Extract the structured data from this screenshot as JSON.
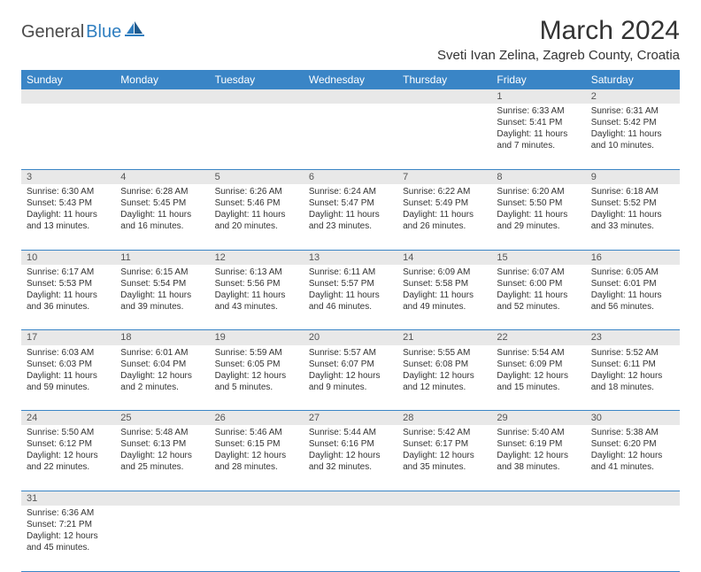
{
  "logo": {
    "text1": "General",
    "text2": "Blue"
  },
  "title": "March 2024",
  "location": "Sveti Ivan Zelina, Zagreb County, Croatia",
  "colors": {
    "header_bg": "#3a85c6",
    "header_text": "#ffffff",
    "daynum_bg": "#e8e8e8",
    "border": "#3a85c6",
    "logo_blue": "#2f7ec0"
  },
  "weekdays": [
    "Sunday",
    "Monday",
    "Tuesday",
    "Wednesday",
    "Thursday",
    "Friday",
    "Saturday"
  ],
  "weeks": [
    [
      null,
      null,
      null,
      null,
      null,
      {
        "n": "1",
        "sunrise": "6:33 AM",
        "sunset": "5:41 PM",
        "day": "11 hours and 7 minutes."
      },
      {
        "n": "2",
        "sunrise": "6:31 AM",
        "sunset": "5:42 PM",
        "day": "11 hours and 10 minutes."
      }
    ],
    [
      {
        "n": "3",
        "sunrise": "6:30 AM",
        "sunset": "5:43 PM",
        "day": "11 hours and 13 minutes."
      },
      {
        "n": "4",
        "sunrise": "6:28 AM",
        "sunset": "5:45 PM",
        "day": "11 hours and 16 minutes."
      },
      {
        "n": "5",
        "sunrise": "6:26 AM",
        "sunset": "5:46 PM",
        "day": "11 hours and 20 minutes."
      },
      {
        "n": "6",
        "sunrise": "6:24 AM",
        "sunset": "5:47 PM",
        "day": "11 hours and 23 minutes."
      },
      {
        "n": "7",
        "sunrise": "6:22 AM",
        "sunset": "5:49 PM",
        "day": "11 hours and 26 minutes."
      },
      {
        "n": "8",
        "sunrise": "6:20 AM",
        "sunset": "5:50 PM",
        "day": "11 hours and 29 minutes."
      },
      {
        "n": "9",
        "sunrise": "6:18 AM",
        "sunset": "5:52 PM",
        "day": "11 hours and 33 minutes."
      }
    ],
    [
      {
        "n": "10",
        "sunrise": "6:17 AM",
        "sunset": "5:53 PM",
        "day": "11 hours and 36 minutes."
      },
      {
        "n": "11",
        "sunrise": "6:15 AM",
        "sunset": "5:54 PM",
        "day": "11 hours and 39 minutes."
      },
      {
        "n": "12",
        "sunrise": "6:13 AM",
        "sunset": "5:56 PM",
        "day": "11 hours and 43 minutes."
      },
      {
        "n": "13",
        "sunrise": "6:11 AM",
        "sunset": "5:57 PM",
        "day": "11 hours and 46 minutes."
      },
      {
        "n": "14",
        "sunrise": "6:09 AM",
        "sunset": "5:58 PM",
        "day": "11 hours and 49 minutes."
      },
      {
        "n": "15",
        "sunrise": "6:07 AM",
        "sunset": "6:00 PM",
        "day": "11 hours and 52 minutes."
      },
      {
        "n": "16",
        "sunrise": "6:05 AM",
        "sunset": "6:01 PM",
        "day": "11 hours and 56 minutes."
      }
    ],
    [
      {
        "n": "17",
        "sunrise": "6:03 AM",
        "sunset": "6:03 PM",
        "day": "11 hours and 59 minutes."
      },
      {
        "n": "18",
        "sunrise": "6:01 AM",
        "sunset": "6:04 PM",
        "day": "12 hours and 2 minutes."
      },
      {
        "n": "19",
        "sunrise": "5:59 AM",
        "sunset": "6:05 PM",
        "day": "12 hours and 5 minutes."
      },
      {
        "n": "20",
        "sunrise": "5:57 AM",
        "sunset": "6:07 PM",
        "day": "12 hours and 9 minutes."
      },
      {
        "n": "21",
        "sunrise": "5:55 AM",
        "sunset": "6:08 PM",
        "day": "12 hours and 12 minutes."
      },
      {
        "n": "22",
        "sunrise": "5:54 AM",
        "sunset": "6:09 PM",
        "day": "12 hours and 15 minutes."
      },
      {
        "n": "23",
        "sunrise": "5:52 AM",
        "sunset": "6:11 PM",
        "day": "12 hours and 18 minutes."
      }
    ],
    [
      {
        "n": "24",
        "sunrise": "5:50 AM",
        "sunset": "6:12 PM",
        "day": "12 hours and 22 minutes."
      },
      {
        "n": "25",
        "sunrise": "5:48 AM",
        "sunset": "6:13 PM",
        "day": "12 hours and 25 minutes."
      },
      {
        "n": "26",
        "sunrise": "5:46 AM",
        "sunset": "6:15 PM",
        "day": "12 hours and 28 minutes."
      },
      {
        "n": "27",
        "sunrise": "5:44 AM",
        "sunset": "6:16 PM",
        "day": "12 hours and 32 minutes."
      },
      {
        "n": "28",
        "sunrise": "5:42 AM",
        "sunset": "6:17 PM",
        "day": "12 hours and 35 minutes."
      },
      {
        "n": "29",
        "sunrise": "5:40 AM",
        "sunset": "6:19 PM",
        "day": "12 hours and 38 minutes."
      },
      {
        "n": "30",
        "sunrise": "5:38 AM",
        "sunset": "6:20 PM",
        "day": "12 hours and 41 minutes."
      }
    ],
    [
      {
        "n": "31",
        "sunrise": "6:36 AM",
        "sunset": "7:21 PM",
        "day": "12 hours and 45 minutes."
      },
      null,
      null,
      null,
      null,
      null,
      null
    ]
  ]
}
